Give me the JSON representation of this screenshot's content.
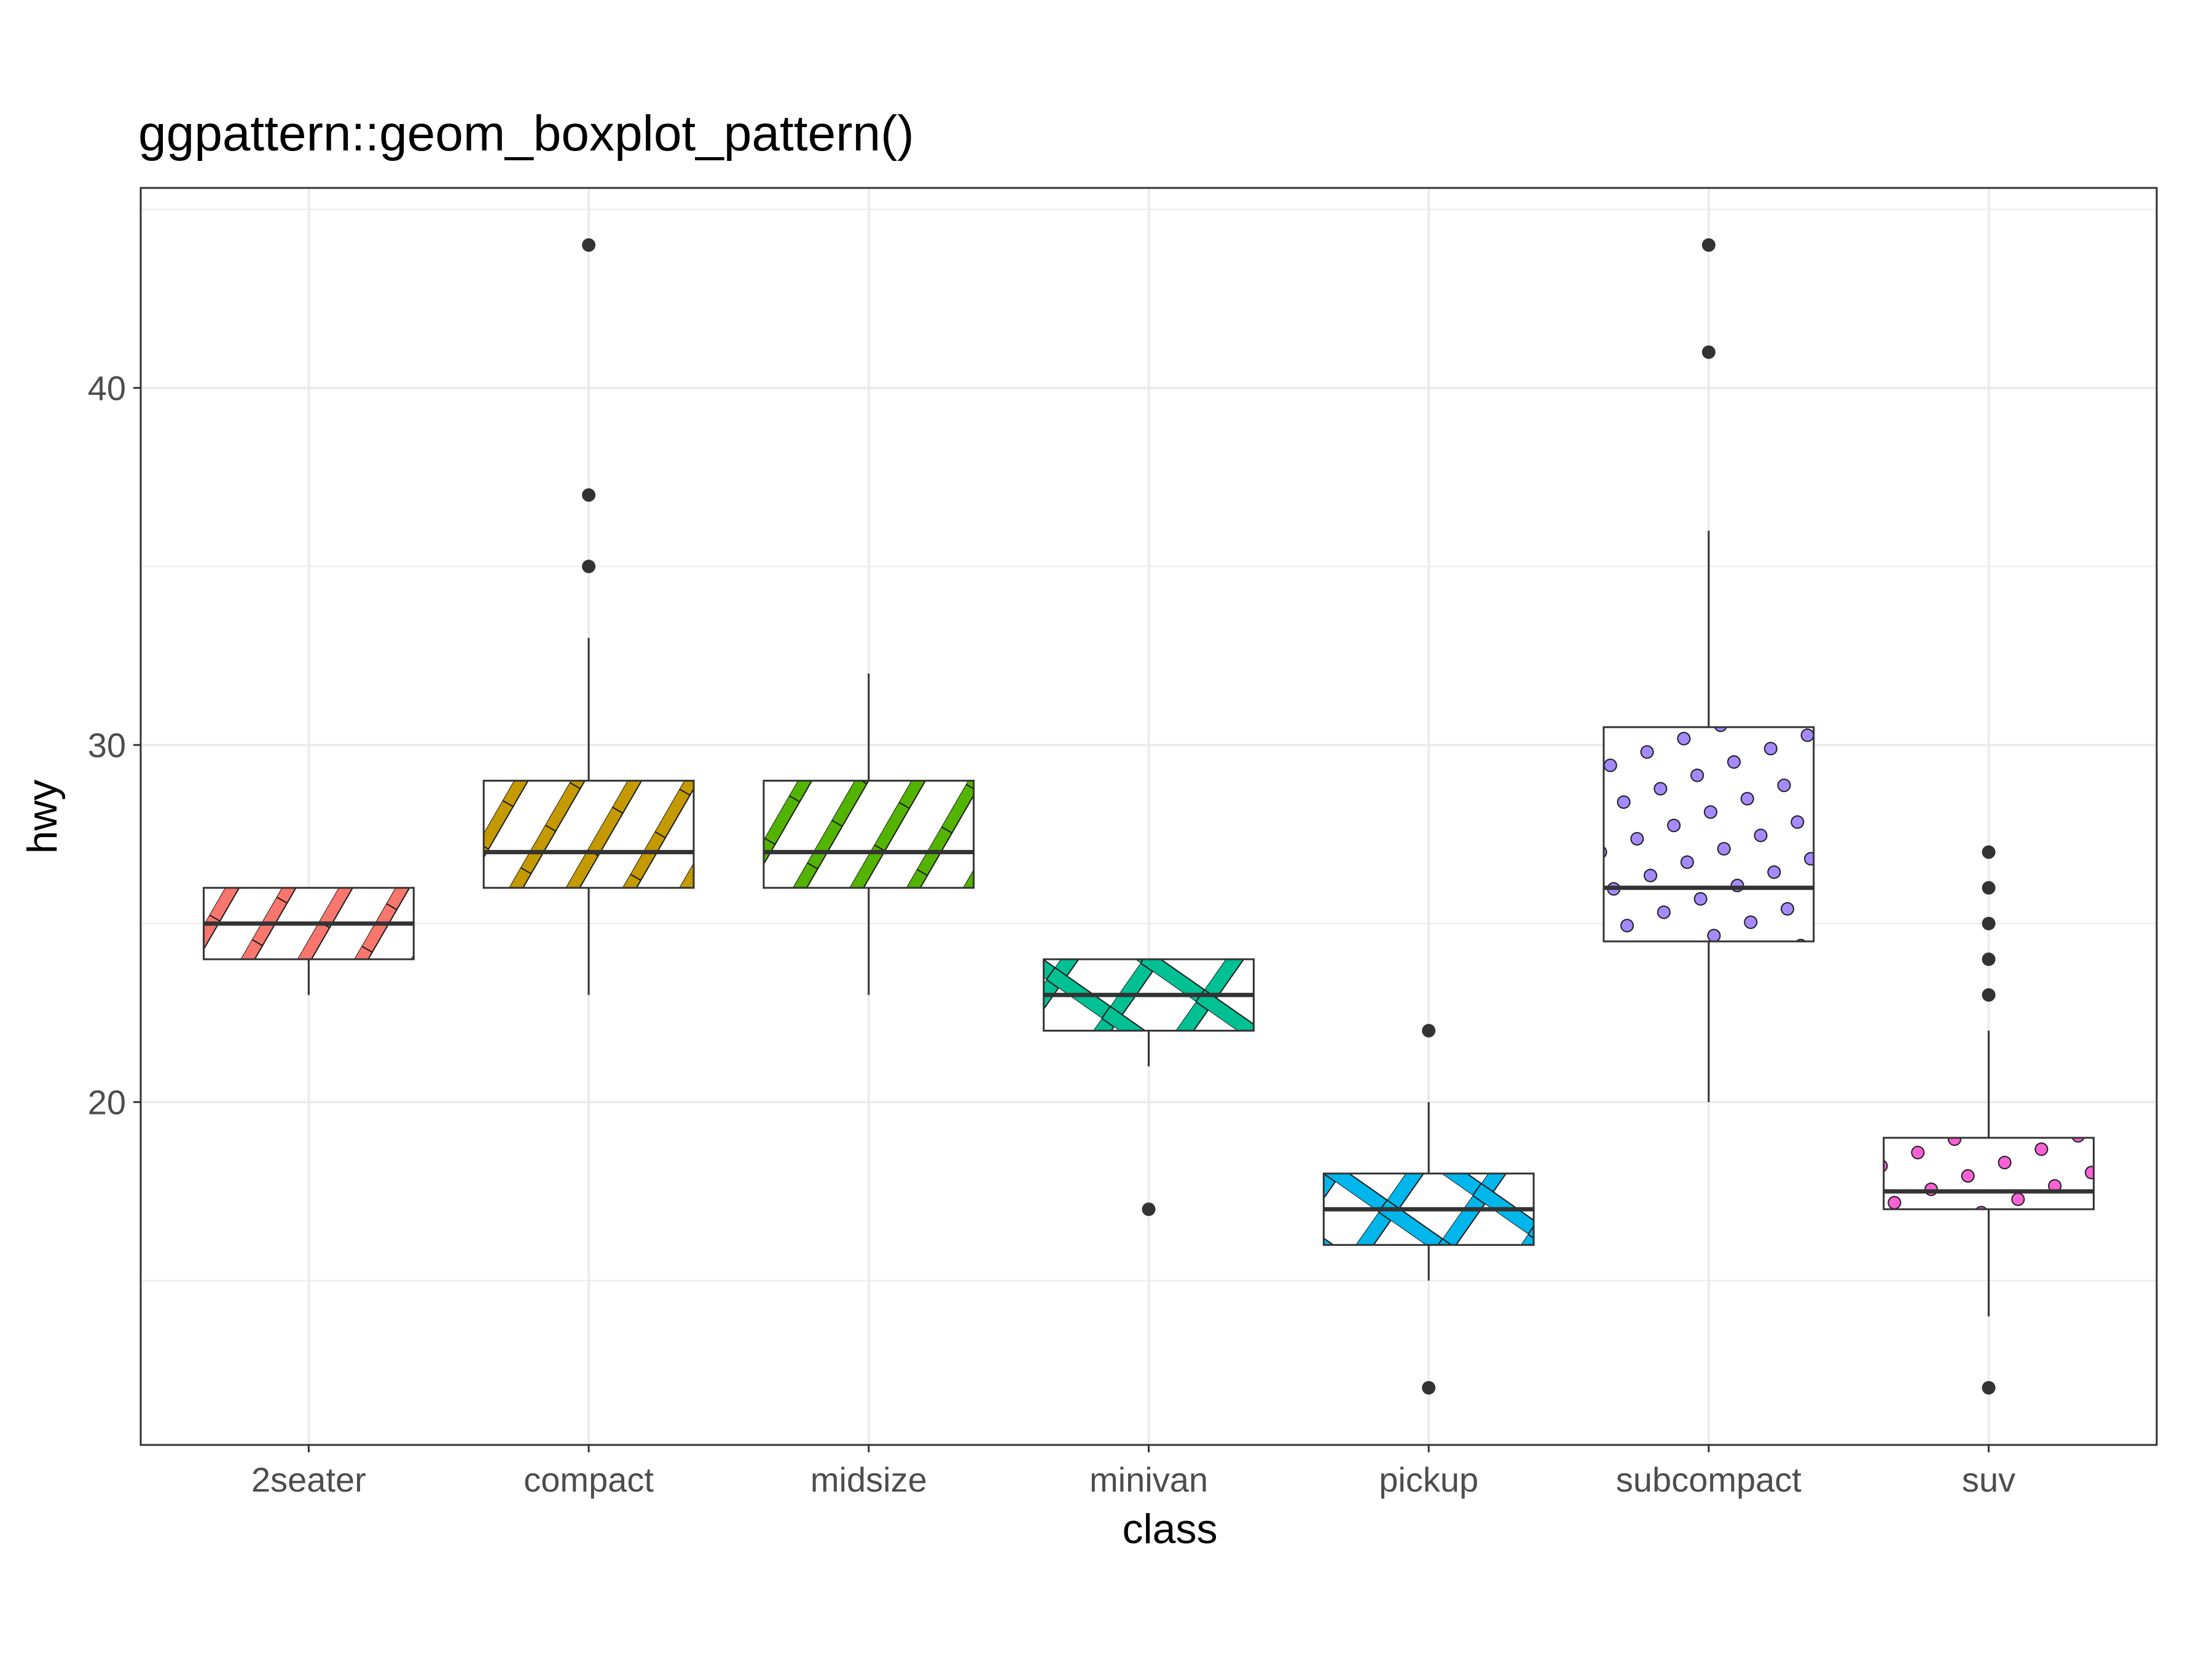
{
  "chart_data": {
    "type": "boxplot",
    "title": "ggpattern::geom_boxplot_pattern()",
    "xlabel": "class",
    "ylabel": "hwy",
    "ylim": [
      10.4,
      45.6
    ],
    "yticks": [
      20,
      30,
      40
    ],
    "y_tick_labels": [
      "20",
      "30",
      "40"
    ],
    "y_minor_ticks": [
      15,
      25,
      35,
      45
    ],
    "grid": true,
    "legend": "none",
    "categories": [
      "2seater",
      "compact",
      "midsize",
      "minivan",
      "pickup",
      "subcompact",
      "suv"
    ],
    "boxes": [
      {
        "category": "2seater",
        "q1": 24,
        "median": 25,
        "q3": 26,
        "whisker_low": 23,
        "whisker_high": 26,
        "outliers": [],
        "pattern": "stripe",
        "color": "#F8766D"
      },
      {
        "category": "compact",
        "q1": 26,
        "median": 27,
        "q3": 29,
        "whisker_low": 23,
        "whisker_high": 33,
        "outliers": [
          35,
          37,
          44
        ],
        "pattern": "stripe",
        "color": "#C49A00"
      },
      {
        "category": "midsize",
        "q1": 26,
        "median": 27,
        "q3": 29,
        "whisker_low": 23,
        "whisker_high": 32,
        "outliers": [],
        "pattern": "stripe",
        "color": "#53B400"
      },
      {
        "category": "minivan",
        "q1": 22,
        "median": 23,
        "q3": 24,
        "whisker_low": 21,
        "whisker_high": 24,
        "outliers": [
          17
        ],
        "pattern": "crosshatch",
        "color": "#00C094"
      },
      {
        "category": "pickup",
        "q1": 16,
        "median": 17,
        "q3": 18,
        "whisker_low": 15,
        "whisker_high": 20,
        "outliers": [
          12,
          22
        ],
        "pattern": "crosshatch",
        "color": "#00B6EB"
      },
      {
        "category": "subcompact",
        "q1": 24.5,
        "median": 26,
        "q3": 30.5,
        "whisker_low": 20,
        "whisker_high": 36,
        "outliers": [
          41,
          44
        ],
        "pattern": "circle",
        "color": "#A58AFF"
      },
      {
        "category": "suv",
        "q1": 17,
        "median": 17.5,
        "q3": 19,
        "whisker_low": 14,
        "whisker_high": 22,
        "outliers": [
          12,
          23,
          24,
          25,
          26,
          27
        ],
        "pattern": "circle",
        "color": "#FB61D7"
      }
    ]
  }
}
